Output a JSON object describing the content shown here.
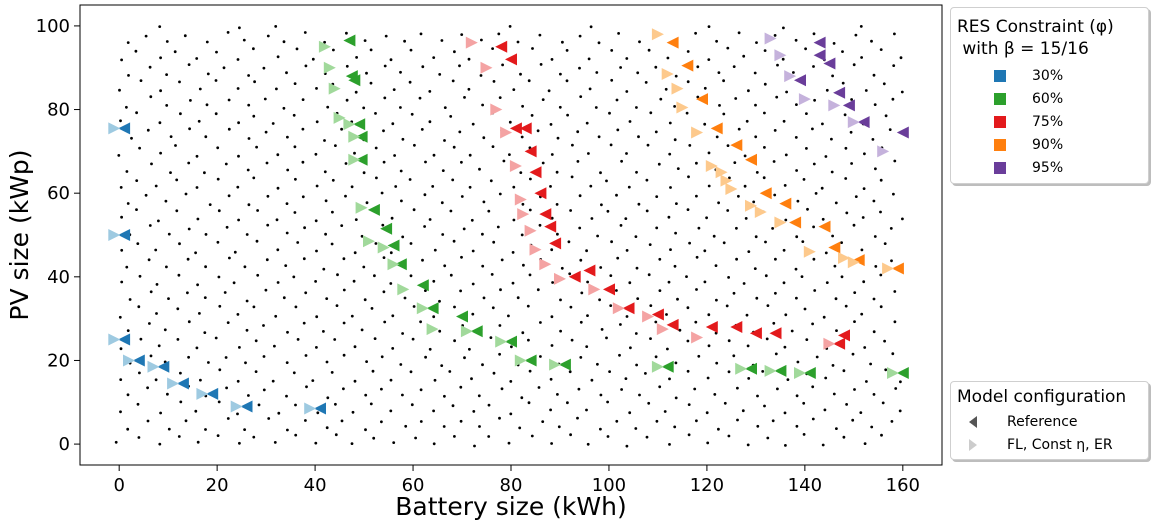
{
  "chart_data": {
    "type": "scatter",
    "xlabel": "Battery size (kWh)",
    "ylabel": "PV size (kWp)",
    "xlim": [
      -8,
      168
    ],
    "ylim": [
      -5,
      105
    ],
    "xticks": [
      0,
      20,
      40,
      60,
      80,
      100,
      120,
      140,
      160
    ],
    "yticks": [
      0,
      20,
      40,
      60,
      80,
      100
    ],
    "grid": false,
    "legend_position": "outside-right",
    "background_points": {
      "description": "dense black dots forming a lattice covering battery 0–160 kWh and PV 0–100 kWp",
      "color": "#000000",
      "x_range": [
        0,
        160
      ],
      "y_range": [
        0,
        100
      ]
    },
    "legends": [
      {
        "title": "RES Constraint (φ)\n with β = 15/16",
        "entries": [
          {
            "label": "30%",
            "color": "#1f77b4",
            "light": "#9ecae1"
          },
          {
            "label": "60%",
            "color": "#2ca02c",
            "light": "#a1d99b"
          },
          {
            "label": "75%",
            "color": "#e31a1c",
            "light": "#f4a3a3"
          },
          {
            "label": "90%",
            "color": "#ff7f0e",
            "light": "#fdc98c"
          },
          {
            "label": "95%",
            "color": "#6a3d9a",
            "light": "#c5b2dc"
          }
        ]
      },
      {
        "title": "Model configuration",
        "entries": [
          {
            "label": "Reference",
            "marker": "left-triangle",
            "color": "#555555"
          },
          {
            "label": "FL, Const η, ER",
            "marker": "right-triangle",
            "color": "#cccccc"
          }
        ]
      }
    ],
    "series": [
      {
        "name": "30%",
        "model": "Reference",
        "marker": "left-triangle",
        "color": "#1f77b4",
        "points": [
          [
            1,
            75.5
          ],
          [
            1,
            50
          ],
          [
            1,
            25
          ],
          [
            4,
            20
          ],
          [
            9,
            18.5
          ],
          [
            13,
            14.5
          ],
          [
            19,
            12
          ],
          [
            26,
            9
          ],
          [
            41,
            8.5
          ]
        ]
      },
      {
        "name": "30%",
        "model": "FL, Const η, ER",
        "marker": "right-triangle",
        "color": "#9ecae1",
        "points": [
          [
            -1,
            75.5
          ],
          [
            -1,
            50
          ],
          [
            -1,
            25
          ],
          [
            2,
            20
          ],
          [
            7,
            18.5
          ],
          [
            11,
            14.5
          ],
          [
            17,
            12
          ],
          [
            24,
            9
          ],
          [
            39,
            8.5
          ]
        ]
      },
      {
        "name": "60%",
        "model": "Reference",
        "marker": "left-triangle",
        "color": "#2ca02c",
        "points": [
          [
            47,
            96.5
          ],
          [
            47.5,
            88
          ],
          [
            48,
            87
          ],
          [
            49,
            76.5
          ],
          [
            49.5,
            73.5
          ],
          [
            49.5,
            68
          ],
          [
            52,
            56
          ],
          [
            54.5,
            51.5
          ],
          [
            56,
            47.5
          ],
          [
            57.5,
            43
          ],
          [
            62,
            38
          ],
          [
            64,
            32.5
          ],
          [
            70,
            30.5
          ],
          [
            73,
            27
          ],
          [
            80,
            24.5
          ],
          [
            84,
            20
          ],
          [
            91,
            19
          ],
          [
            112,
            18.5
          ],
          [
            129,
            18
          ],
          [
            135,
            17.5
          ],
          [
            141,
            17
          ],
          [
            160,
            17
          ]
        ]
      },
      {
        "name": "60%",
        "model": "FL, Const η, ER",
        "marker": "right-triangle",
        "color": "#a1d99b",
        "points": [
          [
            42,
            95
          ],
          [
            43,
            90
          ],
          [
            44,
            85
          ],
          [
            45,
            78
          ],
          [
            47,
            76.5
          ],
          [
            48,
            73.5
          ],
          [
            48,
            68
          ],
          [
            49.5,
            56.5
          ],
          [
            51,
            48.5
          ],
          [
            54,
            47
          ],
          [
            56,
            43
          ],
          [
            58,
            37
          ],
          [
            62,
            32.5
          ],
          [
            64,
            27.5
          ],
          [
            71,
            27
          ],
          [
            78,
            24.5
          ],
          [
            82,
            20
          ],
          [
            89,
            19
          ],
          [
            110,
            18.5
          ],
          [
            127,
            18
          ],
          [
            133,
            17.5
          ],
          [
            139,
            17
          ],
          [
            158,
            17
          ]
        ]
      },
      {
        "name": "75%",
        "model": "Reference",
        "marker": "left-triangle",
        "color": "#e31a1c",
        "points": [
          [
            78,
            95
          ],
          [
            80,
            92
          ],
          [
            81,
            75.5
          ],
          [
            83,
            75.5
          ],
          [
            84,
            70
          ],
          [
            85,
            65
          ],
          [
            86,
            60
          ],
          [
            87,
            55
          ],
          [
            88,
            52
          ],
          [
            89,
            48
          ],
          [
            93,
            40
          ],
          [
            96,
            41.5
          ],
          [
            100,
            37
          ],
          [
            104,
            32.5
          ],
          [
            110,
            31
          ],
          [
            113,
            28.5
          ],
          [
            121,
            28
          ],
          [
            126,
            28
          ],
          [
            130,
            26.5
          ],
          [
            134,
            26.5
          ],
          [
            148,
            26
          ],
          [
            147,
            24
          ]
        ]
      },
      {
        "name": "75%",
        "model": "FL, Const η, ER",
        "marker": "right-triangle",
        "color": "#f4a3a3",
        "points": [
          [
            72,
            96
          ],
          [
            75,
            90
          ],
          [
            77,
            80
          ],
          [
            79,
            74.5
          ],
          [
            81,
            66.5
          ],
          [
            82,
            58.5
          ],
          [
            82.5,
            55
          ],
          [
            84,
            51
          ],
          [
            85,
            46.5
          ],
          [
            87,
            43
          ],
          [
            90,
            39.5
          ],
          [
            97,
            37
          ],
          [
            102,
            32.5
          ],
          [
            108,
            30.5
          ],
          [
            111,
            27.5
          ],
          [
            118,
            25.5
          ],
          [
            145,
            24
          ]
        ]
      },
      {
        "name": "90%",
        "model": "Reference",
        "marker": "left-triangle",
        "color": "#ff7f0e",
        "points": [
          [
            113,
            96
          ],
          [
            116,
            90.5
          ],
          [
            119,
            82.5
          ],
          [
            122,
            75.5
          ],
          [
            126,
            71.5
          ],
          [
            129,
            68
          ],
          [
            132,
            60
          ],
          [
            136,
            57.5
          ],
          [
            138,
            53
          ],
          [
            144,
            52
          ],
          [
            146,
            47
          ],
          [
            151,
            44
          ],
          [
            159,
            42
          ]
        ]
      },
      {
        "name": "90%",
        "model": "FL, Const η, ER",
        "marker": "right-triangle",
        "color": "#fdc98c",
        "points": [
          [
            110,
            98
          ],
          [
            112,
            88.5
          ],
          [
            114,
            85
          ],
          [
            115,
            80.5
          ],
          [
            118,
            74.5
          ],
          [
            121,
            66.5
          ],
          [
            123,
            65
          ],
          [
            124,
            63
          ],
          [
            125,
            61
          ],
          [
            129,
            57
          ],
          [
            131,
            55.5
          ],
          [
            135,
            53
          ],
          [
            141,
            46
          ],
          [
            148,
            44.5
          ],
          [
            150,
            43.5
          ],
          [
            157,
            42
          ]
        ]
      },
      {
        "name": "95%",
        "model": "Reference",
        "marker": "left-triangle",
        "color": "#6a3d9a",
        "points": [
          [
            143,
            96
          ],
          [
            143,
            93
          ],
          [
            145,
            91
          ],
          [
            139,
            87
          ],
          [
            147,
            84
          ],
          [
            149,
            81
          ],
          [
            152,
            77
          ],
          [
            160,
            74.5
          ]
        ]
      },
      {
        "name": "95%",
        "model": "FL, Const η, ER",
        "marker": "right-triangle",
        "color": "#c5b2dc",
        "points": [
          [
            133,
            97
          ],
          [
            135,
            93
          ],
          [
            137,
            88
          ],
          [
            140,
            82.5
          ],
          [
            146,
            81
          ],
          [
            150,
            77
          ],
          [
            156,
            70
          ]
        ]
      }
    ]
  }
}
